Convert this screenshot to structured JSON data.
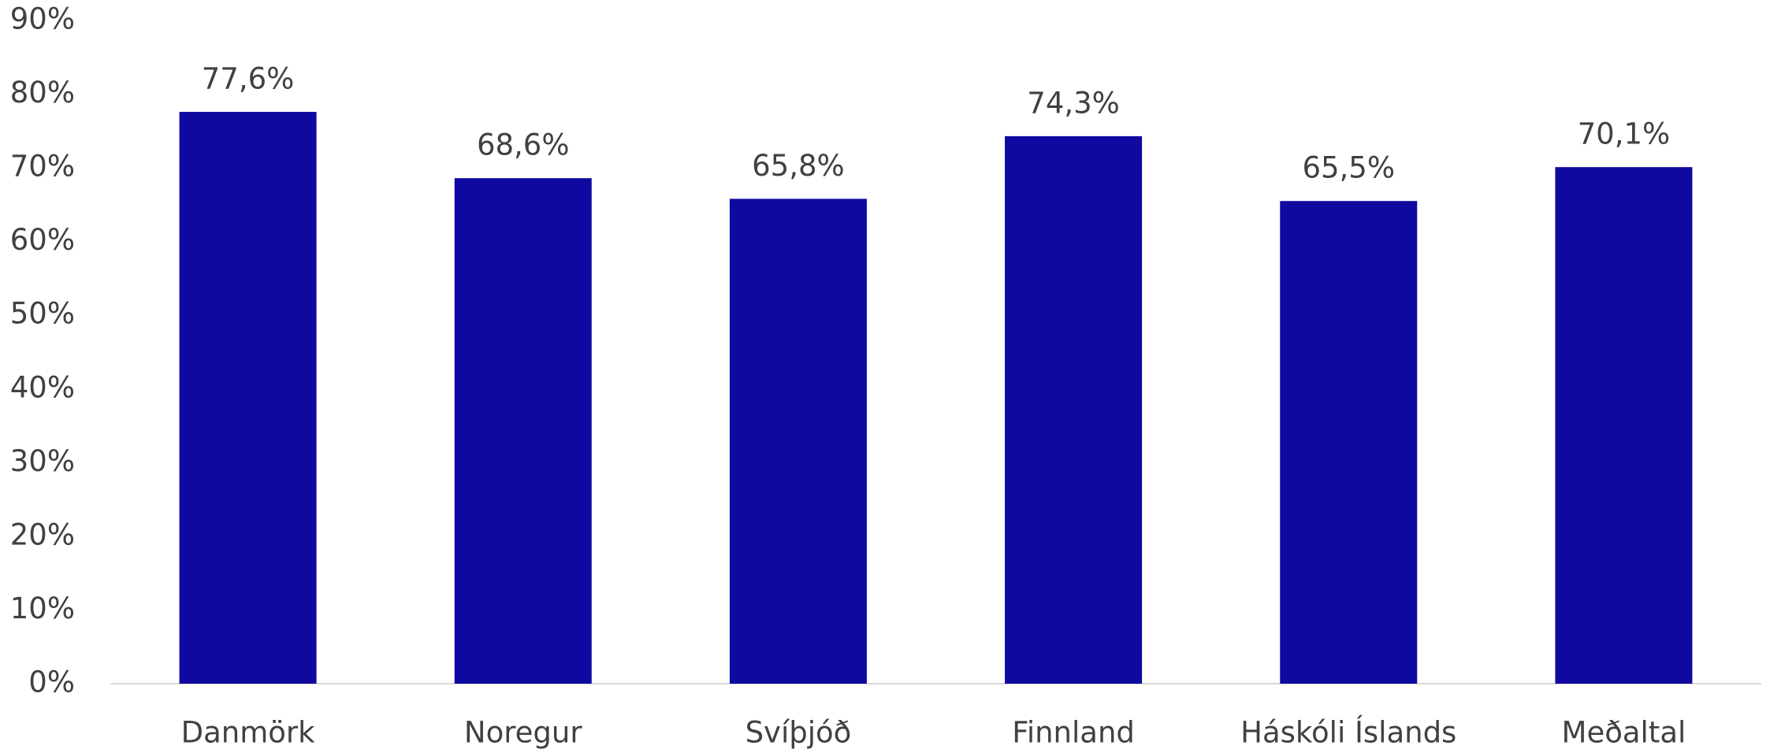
{
  "chart_data": {
    "type": "bar",
    "categories": [
      "Danmörk",
      "Noregur",
      "Svíþjóð",
      "Finnland",
      "Háskóli Íslands",
      "Meðaltal"
    ],
    "values": [
      77.6,
      68.6,
      65.8,
      74.3,
      65.5,
      70.1
    ],
    "value_labels": [
      "77,6%",
      "68,6%",
      "65,8%",
      "74,3%",
      "65,5%",
      "70,1%"
    ],
    "color": "#0f09a0",
    "ylim": [
      0,
      90
    ],
    "yticks": [
      {
        "value": 0,
        "label": "0%"
      },
      {
        "value": 10,
        "label": "10%"
      },
      {
        "value": 20,
        "label": "20%"
      },
      {
        "value": 30,
        "label": "30%"
      },
      {
        "value": 40,
        "label": "40%"
      },
      {
        "value": 50,
        "label": "50%"
      },
      {
        "value": 60,
        "label": "60%"
      },
      {
        "value": 70,
        "label": "70%"
      },
      {
        "value": 80,
        "label": "80%"
      },
      {
        "value": 90,
        "label": "90%"
      }
    ],
    "grid": false
  }
}
